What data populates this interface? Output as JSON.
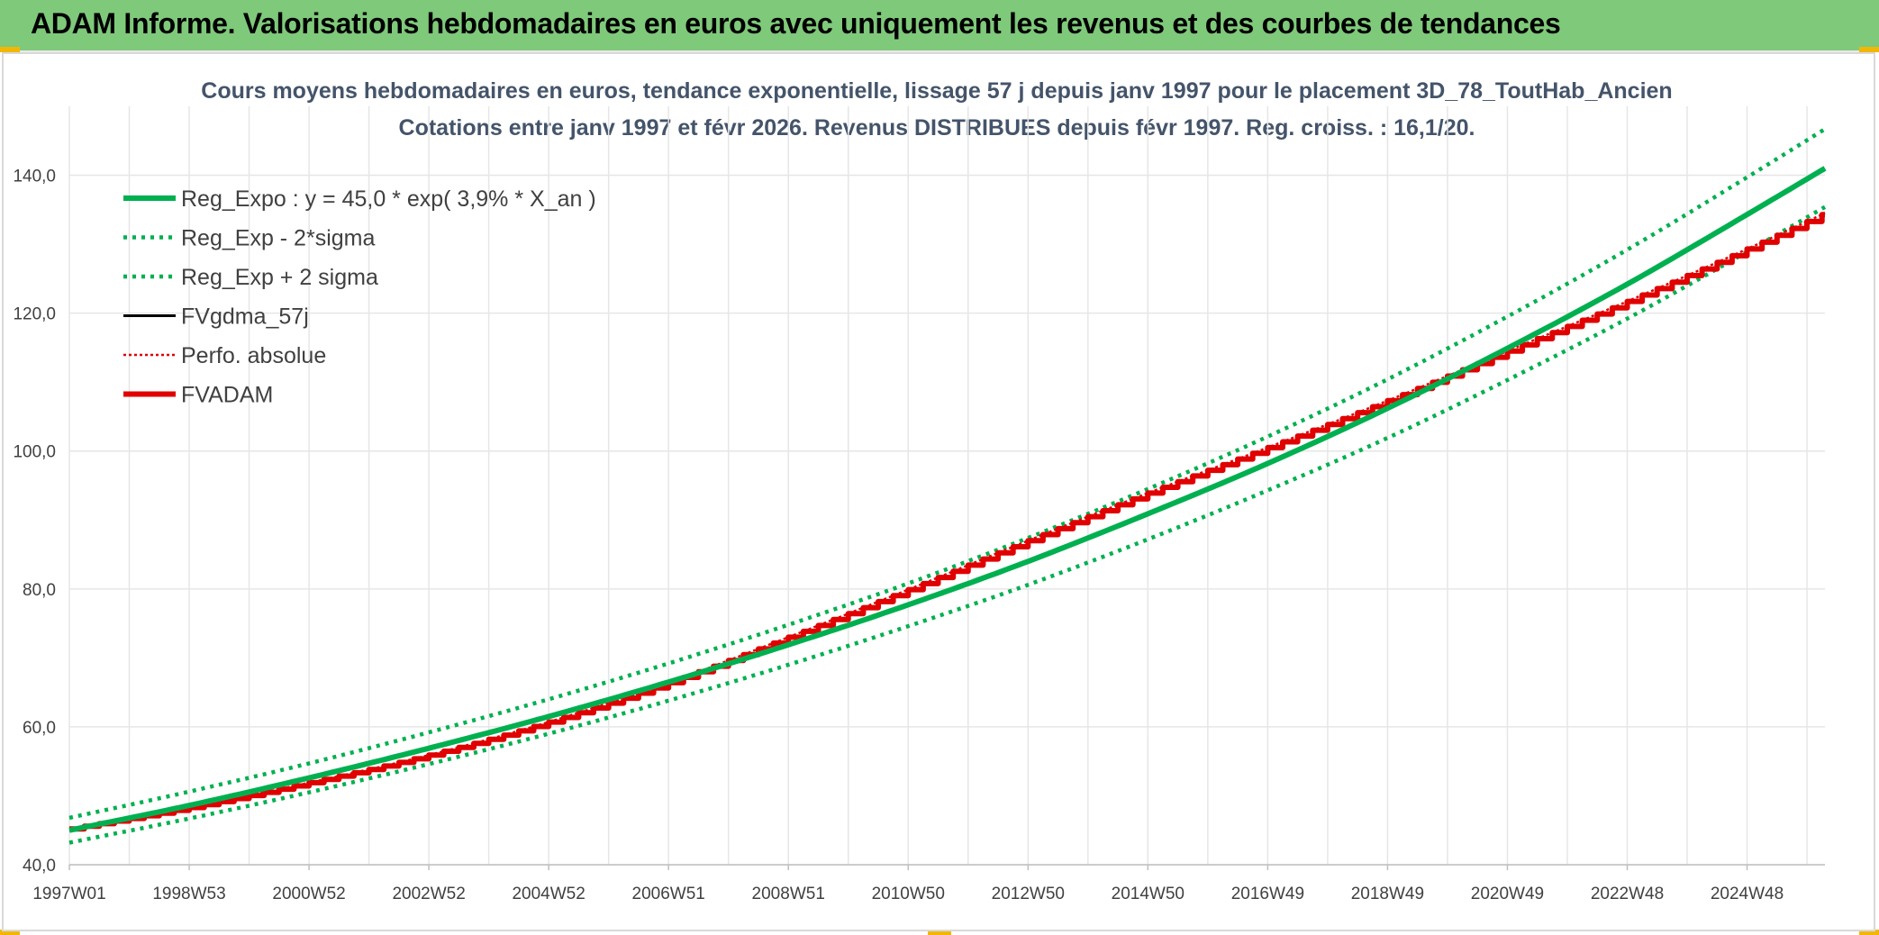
{
  "banner": {
    "title": "ADAM Informe. Valorisations hebdomadaires en euros avec uniquement les revenus et des courbes de tendances"
  },
  "colors": {
    "banner_bg": "#7fc97a",
    "reg_green": "#00b050",
    "fvadam_red": "#e00000",
    "perf_red": "#e00000",
    "fvgdma_black": "#000000",
    "grid": "#e6e6e6",
    "title": "#44546a"
  },
  "chart_data": {
    "type": "line",
    "title_line1": "Cours moyens hebdomadaires en euros, tendance exponentielle, lissage 57 j depuis janv 1997 pour le placement 3D_78_ToutHab_Ancien",
    "title_line2": "Cotations entre janv 1997 et févr 2026. Revenus DISTRIBUES depuis févr 1997. Reg. croiss. : 16,1/20.",
    "xlabel": "",
    "ylabel": "",
    "ylim": [
      40,
      150
    ],
    "yticks": [
      40,
      60,
      80,
      100,
      120,
      140
    ],
    "ytick_labels": [
      "40,0",
      "60,0",
      "80,0",
      "100,0",
      "120,0",
      "140,0"
    ],
    "xlim": [
      1997.0,
      2026.3
    ],
    "xticks": [
      {
        "label": "1997W01",
        "x": 1997.0
      },
      {
        "label": "1998W53",
        "x": 1999.0
      },
      {
        "label": "2000W52",
        "x": 2001.0
      },
      {
        "label": "2002W52",
        "x": 2003.0
      },
      {
        "label": "2004W52",
        "x": 2005.0
      },
      {
        "label": "2006W51",
        "x": 2007.0
      },
      {
        "label": "2008W51",
        "x": 2009.0
      },
      {
        "label": "2010W50",
        "x": 2011.0
      },
      {
        "label": "2012W50",
        "x": 2013.0
      },
      {
        "label": "2014W50",
        "x": 2015.0
      },
      {
        "label": "2016W49",
        "x": 2017.0
      },
      {
        "label": "2018W49",
        "x": 2019.0
      },
      {
        "label": "2020W49",
        "x": 2021.0
      },
      {
        "label": "2022W48",
        "x": 2023.0
      },
      {
        "label": "2024W48",
        "x": 2025.0
      }
    ],
    "grid": true,
    "legend_position": "top-left",
    "series": [
      {
        "name": "Reg_Expo : y = 45,0 * exp( 3,9% *  X_an )",
        "style": "solid-thick",
        "color": "#00b050",
        "x": [
          1997.0,
          1999.0,
          2001.0,
          2003.0,
          2005.0,
          2007.0,
          2009.0,
          2011.0,
          2013.0,
          2015.0,
          2017.0,
          2019.0,
          2021.0,
          2023.0,
          2025.0,
          2026.3
        ],
        "y": [
          45.0,
          48.6,
          52.6,
          56.9,
          61.5,
          66.5,
          71.9,
          77.7,
          84.0,
          90.9,
          98.2,
          106.2,
          114.9,
          124.2,
          134.3,
          141.0
        ]
      },
      {
        "name": "Reg_Exp - 2*sigma",
        "style": "dotted",
        "color": "#00b050",
        "x": [
          1997.0,
          1999.0,
          2001.0,
          2003.0,
          2005.0,
          2007.0,
          2009.0,
          2011.0,
          2013.0,
          2015.0,
          2017.0,
          2019.0,
          2021.0,
          2023.0,
          2025.0,
          2026.3
        ],
        "y": [
          43.2,
          46.7,
          50.5,
          54.6,
          59.0,
          63.8,
          69.0,
          74.6,
          80.6,
          87.2,
          94.3,
          101.9,
          110.3,
          119.2,
          128.9,
          135.4
        ]
      },
      {
        "name": "Reg_Exp + 2 sigma",
        "style": "dotted",
        "color": "#00b050",
        "x": [
          1997.0,
          1999.0,
          2001.0,
          2003.0,
          2005.0,
          2007.0,
          2009.0,
          2011.0,
          2013.0,
          2015.0,
          2017.0,
          2019.0,
          2021.0,
          2023.0,
          2025.0,
          2026.3
        ],
        "y": [
          46.8,
          50.6,
          54.7,
          59.2,
          64.0,
          69.2,
          74.8,
          80.8,
          87.4,
          94.5,
          102.1,
          110.4,
          119.5,
          129.2,
          139.7,
          146.7
        ]
      },
      {
        "name": "FVgdma_57j",
        "style": "solid",
        "color": "#000000",
        "x": [
          1997.0,
          1999.0,
          2001.0,
          2003.0,
          2005.0,
          2007.0,
          2009.0,
          2011.0,
          2013.0,
          2015.0,
          2017.0,
          2019.0,
          2021.0,
          2023.0,
          2025.0,
          2026.3
        ],
        "y": [
          45.2,
          48.3,
          51.9,
          55.9,
          60.7,
          66.4,
          73.0,
          79.9,
          87.0,
          93.9,
          100.5,
          107.3,
          114.5,
          121.7,
          129.3,
          134.5
        ]
      },
      {
        "name": "Perfo. absolue",
        "style": "dotted-thin",
        "color": "#e00000",
        "x": [
          1997.0,
          1999.0,
          2001.0,
          2003.0,
          2005.0,
          2007.0,
          2009.0,
          2011.0,
          2013.0,
          2015.0,
          2017.0,
          2019.0,
          2021.0,
          2023.0,
          2025.0,
          2026.3
        ],
        "y": [
          45.2,
          48.3,
          51.9,
          55.9,
          60.7,
          66.4,
          73.0,
          79.9,
          87.0,
          93.9,
          100.5,
          107.3,
          114.5,
          121.7,
          129.3,
          134.5
        ]
      },
      {
        "name": "FVADAM",
        "style": "solid-thick",
        "color": "#e00000",
        "x": [
          1997.0,
          1999.0,
          2001.0,
          2003.0,
          2005.0,
          2007.0,
          2009.0,
          2011.0,
          2013.0,
          2015.0,
          2017.0,
          2019.0,
          2021.0,
          2023.0,
          2025.0,
          2026.3
        ],
        "y": [
          45.2,
          48.3,
          51.9,
          55.9,
          60.7,
          66.4,
          73.0,
          79.9,
          87.0,
          93.9,
          100.5,
          107.3,
          114.5,
          121.7,
          129.3,
          134.5
        ]
      }
    ]
  }
}
